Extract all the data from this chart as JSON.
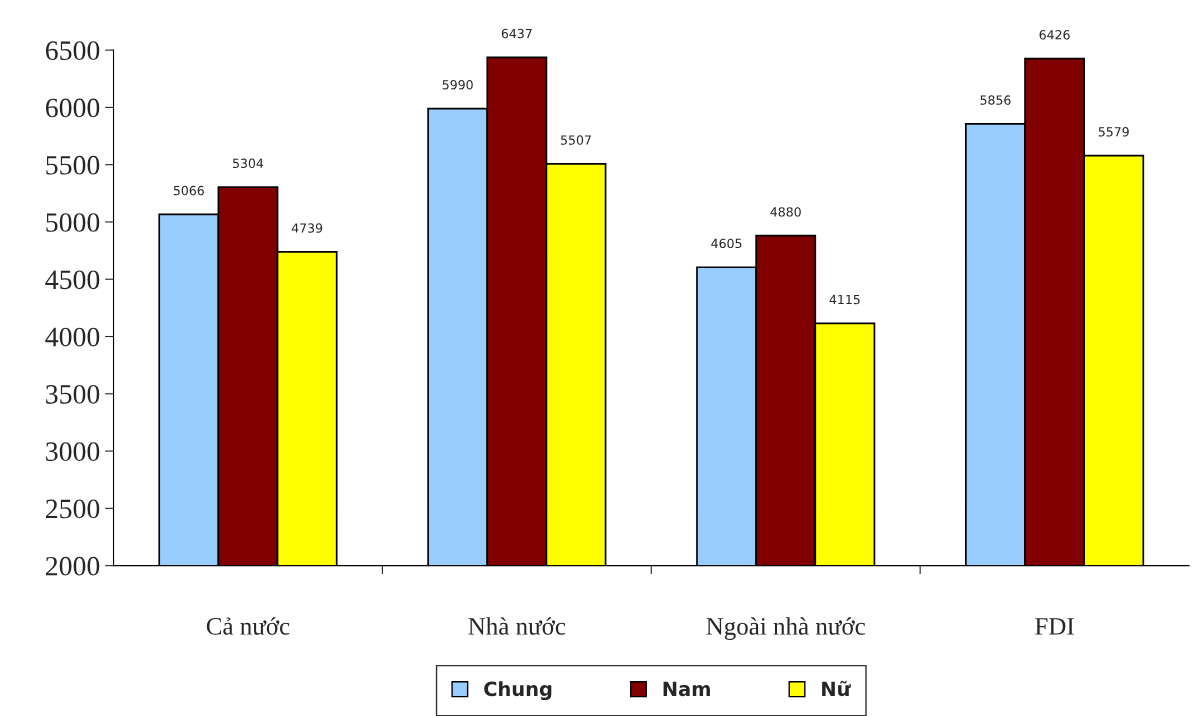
{
  "chart_data": {
    "type": "bar",
    "categories": [
      "Cả nước",
      "Nhà nước",
      "Ngoài nhà nước",
      "FDI"
    ],
    "series": [
      {
        "name": "Chung",
        "color": "#99ccff",
        "values": [
          5066,
          5990,
          4605,
          5856
        ]
      },
      {
        "name": "Nam",
        "color": "#800000",
        "values": [
          5304,
          6437,
          4880,
          6426
        ]
      },
      {
        "name": "Nữ",
        "color": "#ffff00",
        "values": [
          4739,
          5507,
          4115,
          5579
        ]
      }
    ],
    "ylim": [
      2000,
      6500
    ],
    "yticks": [
      2000,
      2500,
      3000,
      3500,
      4000,
      4500,
      5000,
      5500,
      6000,
      6500
    ],
    "data_labels": true,
    "grid": false,
    "legend": "bottom"
  }
}
